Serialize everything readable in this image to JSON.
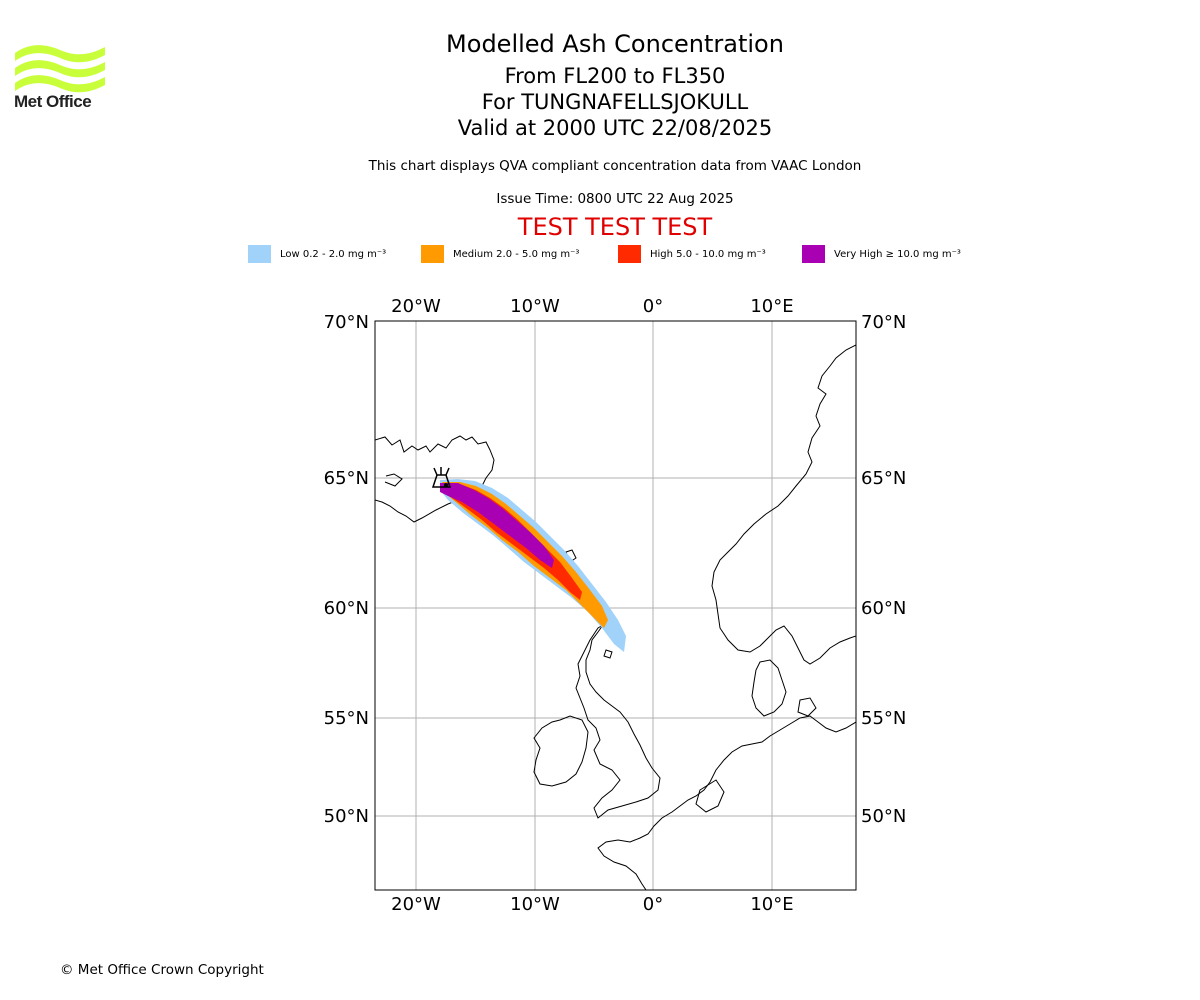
{
  "header": {
    "title": "Modelled Ash Concentration",
    "subtitle_1": "From FL200 to FL350",
    "subtitle_2": "For TUNGNAFELLSJOKULL",
    "subtitle_3": "Valid at 2000 UTC 22/08/2025",
    "note": "This chart displays QVA compliant concentration data from VAAC London",
    "issue_time": "Issue Time: 0800 UTC 22 Aug 2025",
    "test_banner": "TEST TEST TEST"
  },
  "logo": {
    "text": "Met Office",
    "color": "#c8ff3a"
  },
  "legend": {
    "items": [
      {
        "label": "Low 0.2 - 2.0 mg m⁻³",
        "color": "#a0d2fa"
      },
      {
        "label": "Medium 2.0 - 5.0 mg m⁻³",
        "color": "#ff9a00"
      },
      {
        "label": "High 5.0 - 10.0 mg m⁻³",
        "color": "#ff2a00"
      },
      {
        "label": "Very High ≥ 10.0 mg m⁻³",
        "color": "#aa00b4"
      }
    ]
  },
  "map": {
    "lon_labels": [
      "20°W",
      "10°W",
      "0°",
      "10°E"
    ],
    "lat_labels": [
      "70°N",
      "65°N",
      "60°N",
      "55°N",
      "50°N"
    ],
    "volcano": {
      "name_icon": "volcano-icon",
      "lat": 64.7,
      "lon": -17.6
    },
    "extent": {
      "lon": [
        -23.5,
        16.5
      ],
      "lat": [
        47,
        70
      ]
    },
    "gridlines": true
  },
  "footer": {
    "copyright": "© Met Office Crown Copyright"
  }
}
